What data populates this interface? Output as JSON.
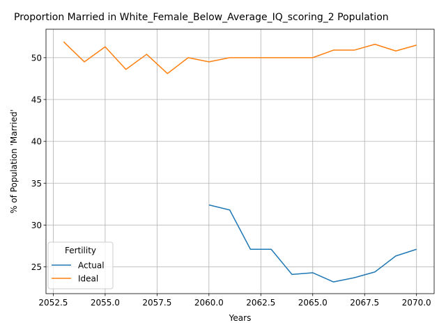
{
  "chart_data": {
    "type": "line",
    "title": "Proportion Married in White_Female_Below_Average_IQ_scoring_2 Population",
    "xlabel": "Years",
    "ylabel": "% of Population 'Married'",
    "xlim": [
      2052.15,
      2070.85
    ],
    "ylim": [
      21.8,
      53.4
    ],
    "xticks": [
      2052.5,
      2055.0,
      2057.5,
      2060.0,
      2062.5,
      2065.0,
      2067.5,
      2070.0
    ],
    "xtick_labels": [
      "2052.5",
      "2055.0",
      "2057.5",
      "2060.0",
      "2062.5",
      "2065.0",
      "2067.5",
      "2070.0"
    ],
    "yticks": [
      25,
      30,
      35,
      40,
      45,
      50
    ],
    "ytick_labels": [
      "25",
      "30",
      "35",
      "40",
      "45",
      "50"
    ],
    "grid": true,
    "legend": {
      "title": "Fertility",
      "position": "lower-left"
    },
    "series": [
      {
        "name": "Actual",
        "color": "#1f77b4",
        "x": [
          2060,
          2061,
          2062,
          2063,
          2064,
          2065,
          2066,
          2067,
          2068,
          2069,
          2070
        ],
        "values": [
          32.4,
          31.8,
          27.1,
          27.1,
          24.1,
          24.3,
          23.2,
          23.7,
          24.4,
          26.3,
          27.1
        ]
      },
      {
        "name": "Ideal",
        "color": "#ff7f0e",
        "x": [
          2053,
          2054,
          2055,
          2056,
          2057,
          2058,
          2059,
          2060,
          2061,
          2062,
          2063,
          2064,
          2065,
          2066,
          2067,
          2068,
          2069,
          2070
        ],
        "values": [
          51.9,
          49.5,
          51.3,
          48.6,
          50.4,
          48.1,
          50.0,
          49.5,
          50.0,
          50.0,
          50.0,
          50.0,
          50.0,
          50.9,
          50.9,
          51.6,
          50.8,
          51.5
        ]
      }
    ]
  }
}
